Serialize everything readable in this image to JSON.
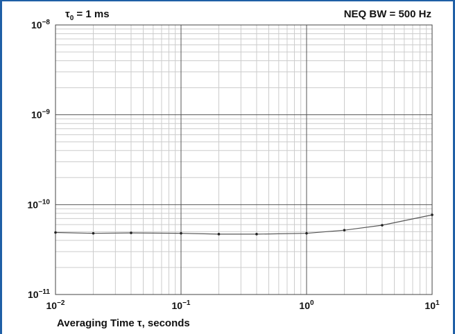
{
  "frame": {
    "border_color": "#1f5fa6"
  },
  "chart_data": {
    "type": "line",
    "corner_left": {
      "tau": "τ",
      "sub": "0",
      "rest": " = 1 ms"
    },
    "corner_right": "NEQ BW = 500 Hz",
    "xlabel": "Averaging Time τ, seconds",
    "ylabel": "",
    "xscale": "log",
    "yscale": "log",
    "xlim": [
      0.01,
      10
    ],
    "ylim": [
      1e-11,
      1e-08
    ],
    "grid": true,
    "x_ticks": [
      {
        "value": 0.01,
        "base": "10",
        "exp": "−2"
      },
      {
        "value": 0.1,
        "base": "10",
        "exp": "−1"
      },
      {
        "value": 1,
        "base": "10",
        "exp": "0"
      },
      {
        "value": 10,
        "base": "10",
        "exp": "1"
      }
    ],
    "y_ticks": [
      {
        "value": 1e-11,
        "base": "10",
        "exp": "−11"
      },
      {
        "value": 1e-10,
        "base": "10",
        "exp": "−10"
      },
      {
        "value": 1e-09,
        "base": "10",
        "exp": "−9"
      },
      {
        "value": 1e-08,
        "base": "10",
        "exp": "−8"
      }
    ],
    "line_color": "#555555",
    "series": [
      {
        "x": [
          0.01,
          0.02,
          0.04,
          0.1,
          0.2,
          0.4,
          1,
          2,
          4,
          10
        ],
        "y": [
          4.9e-11,
          4.8e-11,
          4.85e-11,
          4.8e-11,
          4.7e-11,
          4.7e-11,
          4.8e-11,
          5.2e-11,
          5.9e-11,
          7.7e-11
        ]
      }
    ]
  }
}
